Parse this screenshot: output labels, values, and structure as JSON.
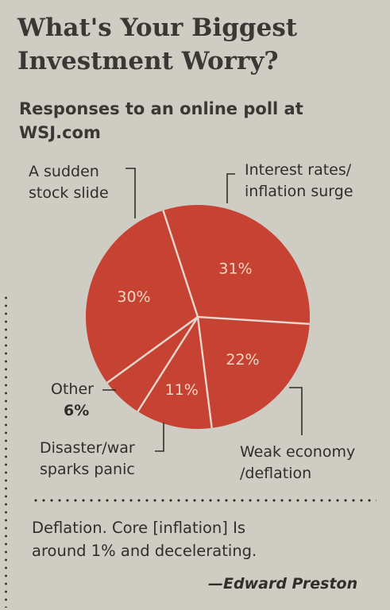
{
  "chart_data": {
    "type": "pie",
    "title": "What's Your Biggest Investment Worry?",
    "subtitle": "Responses to an online poll at WSJ.com",
    "slices": [
      {
        "id": "interest",
        "label_lines": [
          "Interest rates/",
          "inflation surge"
        ],
        "value": 31,
        "value_label": "31%"
      },
      {
        "id": "weak",
        "label_lines": [
          "Weak economy",
          "/deflation"
        ],
        "value": 22,
        "value_label": "22%"
      },
      {
        "id": "disaster",
        "label_lines": [
          "Disaster/war",
          "sparks panic"
        ],
        "value": 11,
        "value_label": "11%"
      },
      {
        "id": "other",
        "label_lines": [
          "Other",
          "6%"
        ],
        "value": 6,
        "value_label": "6%"
      },
      {
        "id": "stock",
        "label_lines": [
          "A sudden",
          "stock slide"
        ],
        "value": 30,
        "value_label": "30%"
      }
    ],
    "slice_color": "#c64233",
    "divider_color": "#e9d8cd"
  },
  "quote": {
    "lines": [
      "Deflation. Core [inflation] Is",
      "around 1% and decelerating."
    ],
    "author": "—Edward Preston"
  }
}
